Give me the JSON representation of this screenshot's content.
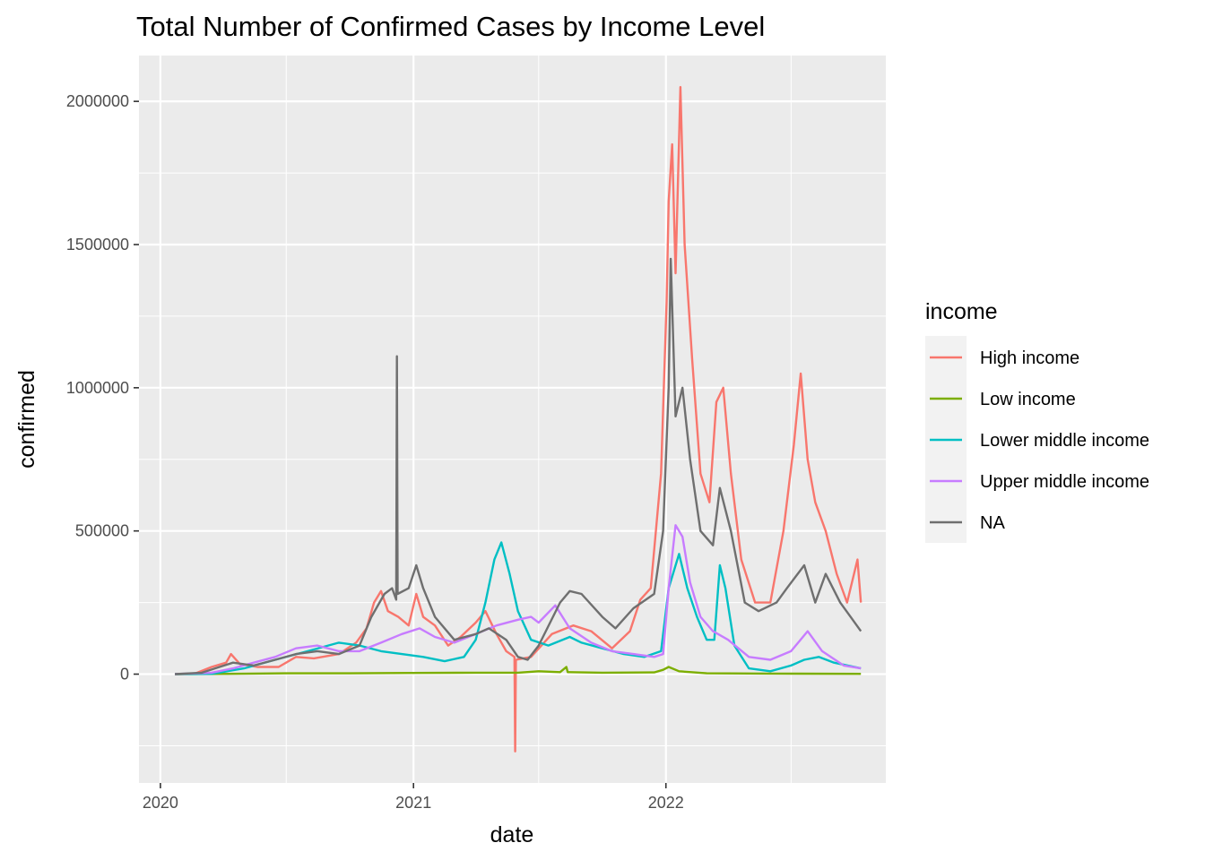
{
  "chart_data": {
    "type": "line",
    "title": "Total Number of Confirmed Cases by Income Level",
    "xlabel": "date",
    "ylabel": "confirmed",
    "x_ticks": [
      "2020",
      "2021",
      "2022"
    ],
    "y_ticks": [
      0,
      500000,
      1000000,
      1500000,
      2000000
    ],
    "y_tick_labels": [
      "0",
      "500000",
      "1000000",
      "1500000",
      "2000000"
    ],
    "xlim": [
      "2019-12-01",
      "2022-11-15"
    ],
    "ylim": [
      -380000,
      2160000
    ],
    "grid": true,
    "legend": {
      "title": "income",
      "position": "right"
    },
    "series": [
      {
        "name": "High income",
        "color": "#F8766D",
        "points": [
          [
            "2020-01-22",
            0
          ],
          [
            "2020-02-20",
            2000
          ],
          [
            "2020-03-15",
            25000
          ],
          [
            "2020-04-05",
            40000
          ],
          [
            "2020-04-12",
            70000
          ],
          [
            "2020-04-25",
            35000
          ],
          [
            "2020-05-20",
            25000
          ],
          [
            "2020-06-20",
            25000
          ],
          [
            "2020-07-15",
            60000
          ],
          [
            "2020-08-10",
            55000
          ],
          [
            "2020-09-15",
            70000
          ],
          [
            "2020-10-10",
            110000
          ],
          [
            "2020-10-25",
            160000
          ],
          [
            "2020-11-05",
            250000
          ],
          [
            "2020-11-15",
            290000
          ],
          [
            "2020-11-25",
            220000
          ],
          [
            "2020-12-10",
            200000
          ],
          [
            "2020-12-25",
            170000
          ],
          [
            "2021-01-05",
            280000
          ],
          [
            "2021-01-15",
            200000
          ],
          [
            "2021-02-01",
            170000
          ],
          [
            "2021-02-20",
            100000
          ],
          [
            "2021-03-10",
            130000
          ],
          [
            "2021-04-01",
            180000
          ],
          [
            "2021-04-15",
            220000
          ],
          [
            "2021-05-01",
            140000
          ],
          [
            "2021-05-15",
            80000
          ],
          [
            "2021-05-27",
            60000
          ],
          [
            "2021-05-28",
            -270000
          ],
          [
            "2021-05-29",
            50000
          ],
          [
            "2021-06-20",
            60000
          ],
          [
            "2021-07-20",
            140000
          ],
          [
            "2021-08-20",
            170000
          ],
          [
            "2021-09-15",
            150000
          ],
          [
            "2021-10-15",
            90000
          ],
          [
            "2021-11-10",
            150000
          ],
          [
            "2021-11-25",
            260000
          ],
          [
            "2021-12-10",
            300000
          ],
          [
            "2021-12-25",
            700000
          ],
          [
            "2022-01-02",
            1300000
          ],
          [
            "2022-01-05",
            1650000
          ],
          [
            "2022-01-10",
            1850000
          ],
          [
            "2022-01-15",
            1400000
          ],
          [
            "2022-01-22",
            2050000
          ],
          [
            "2022-01-28",
            1500000
          ],
          [
            "2022-02-08",
            1100000
          ],
          [
            "2022-02-20",
            700000
          ],
          [
            "2022-03-05",
            600000
          ],
          [
            "2022-03-15",
            950000
          ],
          [
            "2022-03-25",
            1000000
          ],
          [
            "2022-04-05",
            700000
          ],
          [
            "2022-04-20",
            400000
          ],
          [
            "2022-05-10",
            250000
          ],
          [
            "2022-06-01",
            250000
          ],
          [
            "2022-06-20",
            500000
          ],
          [
            "2022-07-05",
            800000
          ],
          [
            "2022-07-15",
            1050000
          ],
          [
            "2022-07-25",
            750000
          ],
          [
            "2022-08-05",
            600000
          ],
          [
            "2022-08-20",
            500000
          ],
          [
            "2022-09-05",
            350000
          ],
          [
            "2022-09-20",
            250000
          ],
          [
            "2022-10-05",
            400000
          ],
          [
            "2022-10-10",
            250000
          ]
        ]
      },
      {
        "name": "Low income",
        "color": "#7CAE00",
        "points": [
          [
            "2020-01-22",
            0
          ],
          [
            "2020-04-01",
            1000
          ],
          [
            "2020-07-01",
            3000
          ],
          [
            "2020-10-01",
            3000
          ],
          [
            "2021-01-01",
            4000
          ],
          [
            "2021-04-01",
            5000
          ],
          [
            "2021-06-01",
            5000
          ],
          [
            "2021-07-01",
            10000
          ],
          [
            "2021-08-01",
            7000
          ],
          [
            "2021-08-10",
            25000
          ],
          [
            "2021-08-12",
            7000
          ],
          [
            "2021-10-01",
            5000
          ],
          [
            "2021-12-15",
            6000
          ],
          [
            "2021-12-28",
            15000
          ],
          [
            "2022-01-05",
            25000
          ],
          [
            "2022-01-20",
            10000
          ],
          [
            "2022-03-01",
            3000
          ],
          [
            "2022-06-01",
            2000
          ],
          [
            "2022-10-10",
            1000
          ]
        ]
      },
      {
        "name": "Lower middle income",
        "color": "#00BFC4",
        "points": [
          [
            "2020-01-22",
            0
          ],
          [
            "2020-03-15",
            1000
          ],
          [
            "2020-05-01",
            20000
          ],
          [
            "2020-06-15",
            50000
          ],
          [
            "2020-08-01",
            80000
          ],
          [
            "2020-09-15",
            110000
          ],
          [
            "2020-10-15",
            100000
          ],
          [
            "2020-11-15",
            80000
          ],
          [
            "2020-12-15",
            70000
          ],
          [
            "2021-01-15",
            60000
          ],
          [
            "2021-02-15",
            45000
          ],
          [
            "2021-03-15",
            60000
          ],
          [
            "2021-04-01",
            120000
          ],
          [
            "2021-04-15",
            250000
          ],
          [
            "2021-04-28",
            400000
          ],
          [
            "2021-05-08",
            460000
          ],
          [
            "2021-05-20",
            350000
          ],
          [
            "2021-06-01",
            220000
          ],
          [
            "2021-06-20",
            120000
          ],
          [
            "2021-07-15",
            100000
          ],
          [
            "2021-08-15",
            130000
          ],
          [
            "2021-09-01",
            110000
          ],
          [
            "2021-10-01",
            90000
          ],
          [
            "2021-11-01",
            70000
          ],
          [
            "2021-12-01",
            60000
          ],
          [
            "2021-12-25",
            80000
          ],
          [
            "2022-01-05",
            300000
          ],
          [
            "2022-01-20",
            420000
          ],
          [
            "2022-02-01",
            300000
          ],
          [
            "2022-02-15",
            200000
          ],
          [
            "2022-03-01",
            120000
          ],
          [
            "2022-03-12",
            120000
          ],
          [
            "2022-03-20",
            380000
          ],
          [
            "2022-03-28",
            300000
          ],
          [
            "2022-04-10",
            100000
          ],
          [
            "2022-05-01",
            20000
          ],
          [
            "2022-06-01",
            10000
          ],
          [
            "2022-07-01",
            30000
          ],
          [
            "2022-07-20",
            50000
          ],
          [
            "2022-08-10",
            60000
          ],
          [
            "2022-09-01",
            40000
          ],
          [
            "2022-10-10",
            20000
          ]
        ]
      },
      {
        "name": "Upper middle income",
        "color": "#C77CFF",
        "points": [
          [
            "2020-01-22",
            0
          ],
          [
            "2020-03-15",
            5000
          ],
          [
            "2020-04-15",
            20000
          ],
          [
            "2020-05-15",
            40000
          ],
          [
            "2020-06-15",
            60000
          ],
          [
            "2020-07-15",
            90000
          ],
          [
            "2020-08-15",
            100000
          ],
          [
            "2020-09-15",
            80000
          ],
          [
            "2020-10-15",
            80000
          ],
          [
            "2020-11-15",
            110000
          ],
          [
            "2020-12-15",
            140000
          ],
          [
            "2021-01-10",
            160000
          ],
          [
            "2021-02-01",
            130000
          ],
          [
            "2021-03-01",
            110000
          ],
          [
            "2021-04-01",
            140000
          ],
          [
            "2021-05-01",
            170000
          ],
          [
            "2021-06-01",
            190000
          ],
          [
            "2021-06-20",
            200000
          ],
          [
            "2021-07-01",
            180000
          ],
          [
            "2021-07-25",
            240000
          ],
          [
            "2021-08-15",
            160000
          ],
          [
            "2021-09-15",
            110000
          ],
          [
            "2021-10-15",
            80000
          ],
          [
            "2021-11-15",
            70000
          ],
          [
            "2021-12-15",
            60000
          ],
          [
            "2021-12-28",
            70000
          ],
          [
            "2022-01-05",
            300000
          ],
          [
            "2022-01-15",
            520000
          ],
          [
            "2022-01-25",
            480000
          ],
          [
            "2022-02-05",
            320000
          ],
          [
            "2022-02-20",
            200000
          ],
          [
            "2022-03-10",
            150000
          ],
          [
            "2022-04-01",
            120000
          ],
          [
            "2022-05-01",
            60000
          ],
          [
            "2022-06-01",
            50000
          ],
          [
            "2022-07-01",
            80000
          ],
          [
            "2022-07-25",
            150000
          ],
          [
            "2022-08-15",
            80000
          ],
          [
            "2022-09-15",
            30000
          ],
          [
            "2022-10-10",
            20000
          ]
        ]
      },
      {
        "name": "NA",
        "color": "#6F6F6F",
        "points": [
          [
            "2020-01-22",
            0
          ],
          [
            "2020-03-01",
            5000
          ],
          [
            "2020-03-20",
            20000
          ],
          [
            "2020-04-15",
            40000
          ],
          [
            "2020-05-15",
            30000
          ],
          [
            "2020-06-15",
            50000
          ],
          [
            "2020-07-15",
            70000
          ],
          [
            "2020-08-15",
            80000
          ],
          [
            "2020-09-15",
            70000
          ],
          [
            "2020-10-15",
            100000
          ],
          [
            "2020-11-01",
            200000
          ],
          [
            "2020-11-20",
            280000
          ],
          [
            "2020-12-01",
            300000
          ],
          [
            "2020-12-07",
            260000
          ],
          [
            "2020-12-08",
            1110000
          ],
          [
            "2020-12-09",
            280000
          ],
          [
            "2020-12-25",
            300000
          ],
          [
            "2021-01-05",
            380000
          ],
          [
            "2021-01-15",
            300000
          ],
          [
            "2021-02-01",
            200000
          ],
          [
            "2021-03-01",
            120000
          ],
          [
            "2021-04-01",
            140000
          ],
          [
            "2021-04-20",
            160000
          ],
          [
            "2021-05-15",
            120000
          ],
          [
            "2021-06-01",
            60000
          ],
          [
            "2021-06-15",
            50000
          ],
          [
            "2021-07-01",
            100000
          ],
          [
            "2021-08-01",
            250000
          ],
          [
            "2021-08-15",
            290000
          ],
          [
            "2021-09-01",
            280000
          ],
          [
            "2021-10-01",
            200000
          ],
          [
            "2021-10-20",
            160000
          ],
          [
            "2021-11-15",
            230000
          ],
          [
            "2021-12-15",
            280000
          ],
          [
            "2021-12-28",
            500000
          ],
          [
            "2022-01-05",
            1000000
          ],
          [
            "2022-01-08",
            1450000
          ],
          [
            "2022-01-15",
            900000
          ],
          [
            "2022-01-25",
            1000000
          ],
          [
            "2022-02-05",
            750000
          ],
          [
            "2022-02-20",
            500000
          ],
          [
            "2022-03-10",
            450000
          ],
          [
            "2022-03-20",
            650000
          ],
          [
            "2022-04-05",
            500000
          ],
          [
            "2022-04-25",
            250000
          ],
          [
            "2022-05-15",
            220000
          ],
          [
            "2022-06-10",
            250000
          ],
          [
            "2022-06-25",
            300000
          ],
          [
            "2022-07-20",
            380000
          ],
          [
            "2022-08-05",
            250000
          ],
          [
            "2022-08-20",
            350000
          ],
          [
            "2022-09-10",
            250000
          ],
          [
            "2022-09-25",
            200000
          ],
          [
            "2022-10-10",
            150000
          ]
        ]
      }
    ]
  }
}
